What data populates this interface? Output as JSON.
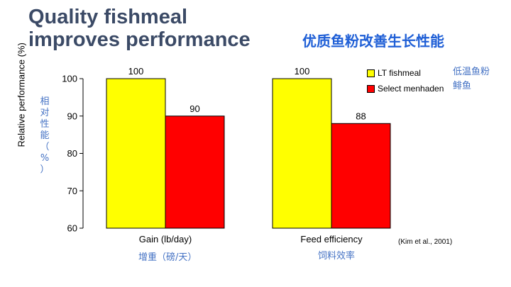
{
  "title": {
    "line1": "Quality fishmeal",
    "line2": "improves performance",
    "zh": "优质鱼粉改善生长性能"
  },
  "ylabel": {
    "en": "Relative performance (%)",
    "zh": [
      "相",
      "对",
      "性",
      "能",
      "（",
      "%",
      "）"
    ]
  },
  "legend": {
    "items": [
      {
        "label": "LT fishmeal",
        "color": "#ffff00"
      },
      {
        "label": "Select menhaden",
        "color": "#ff0000"
      }
    ],
    "zh": [
      "低温鱼粉",
      "鲱鱼"
    ]
  },
  "category_zh": [
    "增重（磅/天）",
    "饲料效率"
  ],
  "citation": "(Kim et al., 2001)",
  "chart_data": {
    "type": "bar",
    "categories": [
      "Gain (lb/day)",
      "Feed efficiency"
    ],
    "series": [
      {
        "name": "LT fishmeal",
        "values": [
          100,
          100
        ],
        "color": "#ffff00"
      },
      {
        "name": "Select menhaden",
        "values": [
          90,
          88
        ],
        "color": "#ff0000"
      }
    ],
    "ylabel": "Relative performance (%)",
    "ylim": [
      60,
      100
    ],
    "yticks": [
      60,
      70,
      80,
      90,
      100
    ],
    "legend": "top-right",
    "grid": false
  }
}
